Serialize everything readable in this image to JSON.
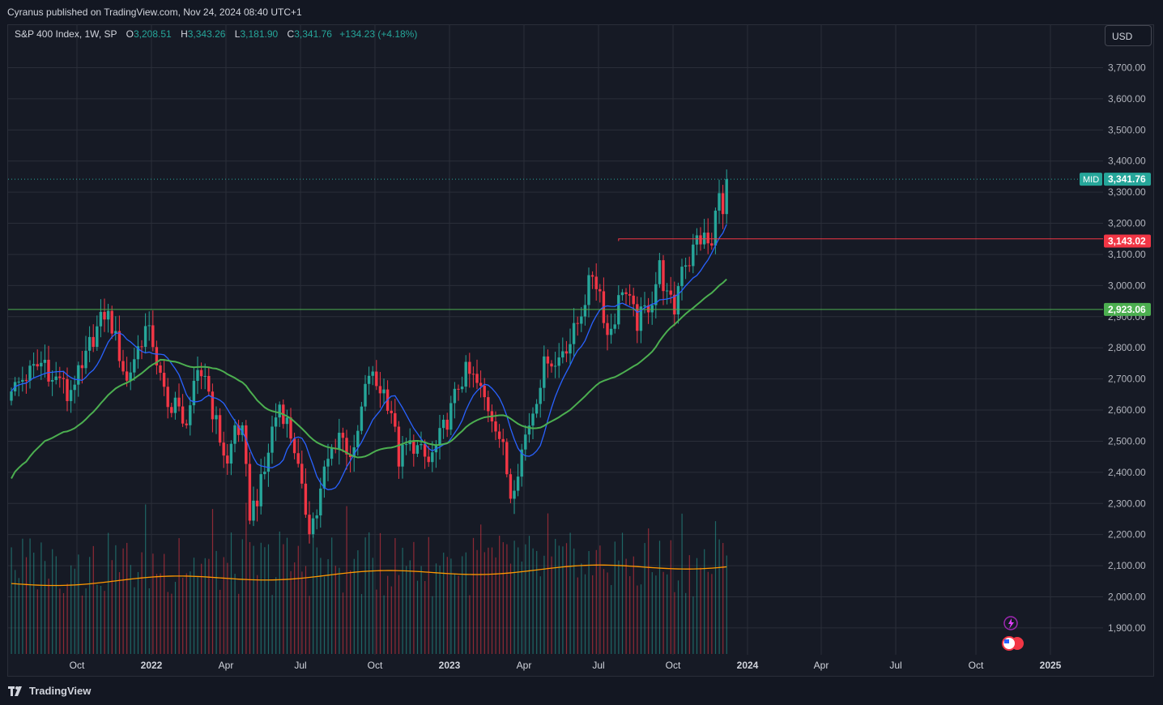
{
  "header": {
    "published": "Cyranus published on TradingView.com, Nov 24, 2024 08:40 UTC+1"
  },
  "legend": {
    "symbol": "S&P 400 Index, 1W, SP",
    "o_label": "O",
    "o_value": "3,208.51",
    "h_label": "H",
    "h_value": "3,343.26",
    "l_label": "L",
    "l_value": "3,181.90",
    "c_label": "C",
    "c_value": "3,341.76",
    "change": "+134.23 (+4.18%)"
  },
  "currency_button": "USD",
  "footer": {
    "brand": "TradingView"
  },
  "colors": {
    "up": "#26a69a",
    "down": "#f23645",
    "ma_fast": "#2962ff",
    "ma_slow": "#4caf50",
    "volume_ma": "#ff9800",
    "grid": "#2a2e39"
  },
  "chart_data": {
    "type": "candlestick",
    "interval": "1W",
    "ylim": [
      1800,
      3800
    ],
    "y_ticks": [
      "1,900.00",
      "2,000.00",
      "2,100.00",
      "2,200.00",
      "2,300.00",
      "2,400.00",
      "2,500.00",
      "2,600.00",
      "2,700.00",
      "2,800.00",
      "2,900.00",
      "3,000.00",
      "3,100.00",
      "3,200.00",
      "3,300.00",
      "3,400.00",
      "3,500.00",
      "3,600.00",
      "3,700.00"
    ],
    "x_ticks": [
      "Oct",
      "2022",
      "Apr",
      "Jul",
      "Oct",
      "2023",
      "Apr",
      "Jul",
      "Oct",
      "2024",
      "Apr",
      "Jul",
      "Oct",
      "2025"
    ],
    "last_price": {
      "label": "MID",
      "value": "3,341.76",
      "y": 3341.76
    },
    "horizontal_lines": [
      {
        "value": "3,143.02",
        "y": 3143.02,
        "color": "#f23645"
      },
      {
        "value": "2,923.06",
        "y": 2923.06,
        "color": "#4caf50"
      }
    ],
    "close_anchors": [
      [
        0,
        2660
      ],
      [
        3,
        2700
      ],
      [
        6,
        2730
      ],
      [
        9,
        2760
      ],
      [
        11,
        2690
      ],
      [
        13,
        2710
      ],
      [
        15,
        2640
      ],
      [
        17,
        2700
      ],
      [
        19,
        2720
      ],
      [
        21,
        2810
      ],
      [
        23,
        2860
      ],
      [
        25,
        2910
      ],
      [
        26,
        2900
      ],
      [
        27,
        2870
      ],
      [
        29,
        2780
      ],
      [
        31,
        2690
      ],
      [
        33,
        2770
      ],
      [
        34,
        2800
      ],
      [
        36,
        2860
      ],
      [
        38,
        2820
      ],
      [
        40,
        2700
      ],
      [
        42,
        2600
      ],
      [
        44,
        2640
      ],
      [
        46,
        2540
      ],
      [
        48,
        2620
      ],
      [
        50,
        2700
      ],
      [
        52,
        2720
      ],
      [
        54,
        2600
      ],
      [
        56,
        2510
      ],
      [
        58,
        2420
      ],
      [
        60,
        2550
      ],
      [
        62,
        2520
      ],
      [
        64,
        2270
      ],
      [
        66,
        2320
      ],
      [
        68,
        2400
      ],
      [
        70,
        2540
      ],
      [
        72,
        2620
      ],
      [
        74,
        2560
      ],
      [
        76,
        2480
      ],
      [
        78,
        2330
      ],
      [
        80,
        2230
      ],
      [
        82,
        2270
      ],
      [
        84,
        2400
      ],
      [
        86,
        2470
      ],
      [
        88,
        2530
      ],
      [
        90,
        2480
      ],
      [
        92,
        2450
      ],
      [
        94,
        2600
      ],
      [
        96,
        2720
      ],
      [
        98,
        2680
      ],
      [
        100,
        2660
      ],
      [
        102,
        2600
      ],
      [
        104,
        2440
      ],
      [
        106,
        2480
      ],
      [
        108,
        2490
      ],
      [
        110,
        2460
      ],
      [
        112,
        2430
      ],
      [
        114,
        2480
      ],
      [
        116,
        2540
      ],
      [
        118,
        2600
      ],
      [
        120,
        2680
      ],
      [
        122,
        2720
      ],
      [
        124,
        2700
      ],
      [
        126,
        2660
      ],
      [
        128,
        2610
      ],
      [
        130,
        2560
      ],
      [
        132,
        2470
      ],
      [
        134,
        2330
      ],
      [
        136,
        2420
      ],
      [
        138,
        2520
      ],
      [
        140,
        2600
      ],
      [
        142,
        2700
      ],
      [
        144,
        2780
      ],
      [
        146,
        2740
      ],
      [
        148,
        2800
      ],
      [
        150,
        2820
      ],
      [
        152,
        2880
      ],
      [
        154,
        2960
      ],
      [
        156,
        3040
      ],
      [
        158,
        2980
      ],
      [
        160,
        2840
      ],
      [
        162,
        2900
      ],
      [
        164,
        3000
      ],
      [
        166,
        2940
      ],
      [
        168,
        2880
      ],
      [
        170,
        2920
      ],
      [
        172,
        2960
      ],
      [
        174,
        3060
      ],
      [
        176,
        2960
      ],
      [
        178,
        2920
      ],
      [
        180,
        3080
      ],
      [
        182,
        3080
      ],
      [
        184,
        3150
      ],
      [
        186,
        3150
      ],
      [
        188,
        3120
      ],
      [
        190,
        3330
      ],
      [
        191,
        3210
      ],
      [
        192,
        3341.76
      ]
    ],
    "volume_ma_level": 2100
  }
}
